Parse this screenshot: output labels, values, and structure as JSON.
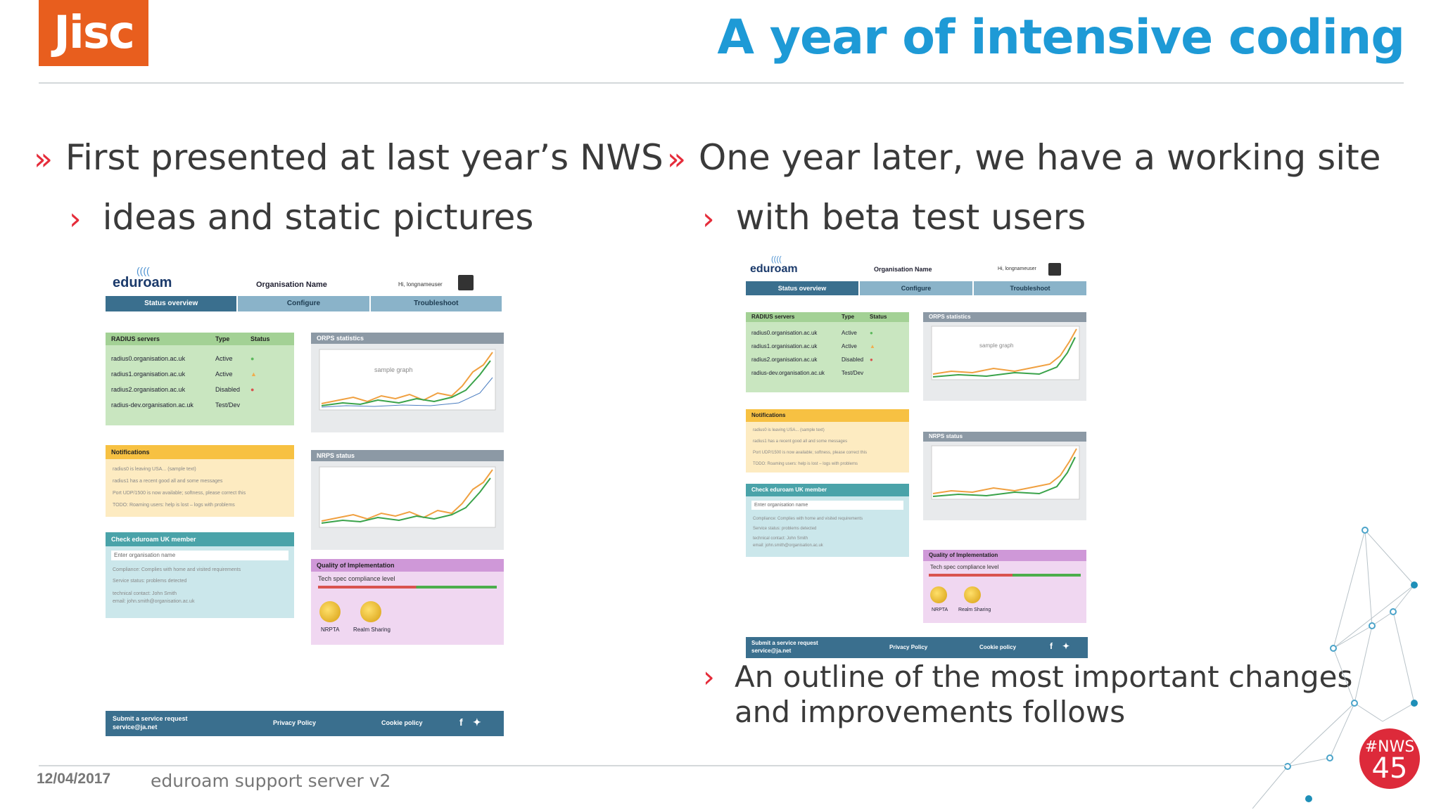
{
  "header": {
    "logo": "Jisc",
    "title": "A year of intensive coding"
  },
  "left": {
    "bullet": "First presented at last year’s NWS",
    "sub": "ideas and static pictures"
  },
  "right": {
    "bullet": "One year later, we have a working site",
    "sub": "with beta test users",
    "sub2_line1": "An outline of the most important changes",
    "sub2_line2": "and improvements follows"
  },
  "markers": {
    "main": "»",
    "sub": "›"
  },
  "footer": {
    "date": "12/04/2017",
    "text": "eduroam support server v2",
    "badge_tag": "#NWS",
    "badge_num": "45"
  },
  "mock": {
    "brand": "eduroam",
    "org_name": "Organisation Name",
    "user": "Hi, longnameuser",
    "tabs": [
      "Status overview",
      "Configure",
      "Troubleshoot"
    ],
    "radius": {
      "title": "RADIUS servers",
      "col_type": "Type",
      "col_status": "Status",
      "rows": [
        {
          "name": "radius0.organisation.ac.uk",
          "type": "Active"
        },
        {
          "name": "radius1.organisation.ac.uk",
          "type": "Active"
        },
        {
          "name": "radius2.organisation.ac.uk",
          "type": "Disabled"
        },
        {
          "name": "radius-dev.organisation.ac.uk",
          "type": "Test/Dev"
        }
      ]
    },
    "orps_title": "ORPS statistics",
    "nrps_title": "NRPS status",
    "graph_label": "sample graph",
    "notifications": {
      "title": "Notifications",
      "lines": [
        "radius0 is leaving USA...    (sample text)",
        "radius1 has a recent good all and some messages",
        "Port UDP/1500 is now available; softness, please correct this",
        "TODO: Roaming users: help is lost – logs with problems"
      ]
    },
    "check": {
      "title": "Check eduroam UK member",
      "placeholder": "Enter organisation name",
      "lines": [
        "Compliance: Complies with home and visited requirements",
        "Service status: problems detected",
        "technical contact: John Smith",
        "email: john.smith@organisation.ac.uk"
      ]
    },
    "quality": {
      "title": "Quality of Implementation",
      "level": "Tech spec compliance level",
      "badges": [
        "NRPTA",
        "Realm Sharing"
      ]
    },
    "footer": {
      "submit": "Submit a service request",
      "email": "service@ja.net",
      "privacy": "Privacy Policy",
      "cookie": "Cookie policy"
    }
  }
}
